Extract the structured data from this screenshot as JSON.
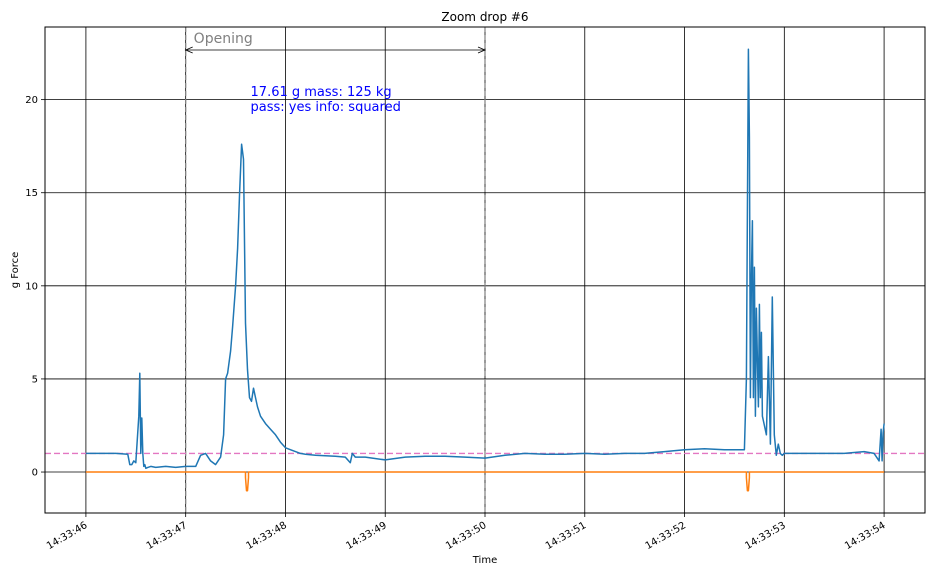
{
  "chart_data": {
    "type": "line",
    "title": "Zoom drop #6",
    "xlabel": "Time",
    "ylabel": "g Force",
    "grid": true,
    "x_ticks": [
      "14:33:46",
      "14:33:47",
      "14:33:48",
      "14:33:49",
      "14:33:50",
      "14:33:51",
      "14:33:52",
      "14:33:53",
      "14:33:54"
    ],
    "y_ticks": [
      "0",
      "5",
      "10",
      "15",
      "20"
    ],
    "xlim": [
      -0.41,
      8.41
    ],
    "ylim": [
      -2.2,
      23.9
    ],
    "reference_line": {
      "y": 1.0,
      "style": "dashed",
      "color": "#e377c2"
    },
    "phase": {
      "label": "Opening",
      "x_start": 1.0,
      "x_end": 4.0
    },
    "annotation": {
      "line1": "17.61 g  mass: 125 kg",
      "line2": "pass: yes  info: squared",
      "x": 1.65,
      "y": 20.2
    },
    "series": [
      {
        "color": "#1f77b4",
        "x": [
          0,
          0.15,
          0.3,
          0.42,
          0.44,
          0.46,
          0.48,
          0.5,
          0.53,
          0.54,
          0.55,
          0.56,
          0.57,
          0.58,
          0.59,
          0.6,
          0.62,
          0.65,
          0.7,
          0.8,
          0.9,
          1.0,
          1.1,
          1.15,
          1.2,
          1.25,
          1.3,
          1.35,
          1.38,
          1.4,
          1.42,
          1.45,
          1.47,
          1.5,
          1.52,
          1.54,
          1.56,
          1.58,
          1.6,
          1.62,
          1.64,
          1.66,
          1.68,
          1.7,
          1.72,
          1.75,
          1.8,
          1.85,
          1.9,
          1.95,
          2.0,
          2.05,
          2.1,
          2.15,
          2.2,
          2.3,
          2.5,
          2.6,
          2.65,
          2.67,
          2.7,
          2.8,
          3.0,
          3.2,
          3.4,
          3.6,
          3.8,
          4.0,
          4.2,
          4.4,
          4.6,
          4.8,
          5.0,
          5.2,
          5.4,
          5.6,
          5.8,
          6.0,
          6.2,
          6.4,
          6.5,
          6.55,
          6.6,
          6.62,
          6.63,
          6.64,
          6.65,
          6.66,
          6.67,
          6.68,
          6.69,
          6.7,
          6.71,
          6.72,
          6.73,
          6.74,
          6.75,
          6.76,
          6.77,
          6.78,
          6.8,
          6.82,
          6.84,
          6.86,
          6.88,
          6.9,
          6.92,
          6.94,
          6.96,
          6.98,
          7.0,
          7.05,
          7.1,
          7.2,
          7.4,
          7.6,
          7.8,
          7.9,
          7.95,
          7.97,
          7.98,
          7.99,
          8.0
        ],
        "y": [
          1.0,
          1.0,
          1.0,
          0.95,
          0.4,
          0.4,
          0.6,
          0.5,
          3.0,
          5.3,
          1.0,
          2.9,
          1.0,
          0.3,
          0.4,
          0.2,
          0.25,
          0.3,
          0.25,
          0.3,
          0.25,
          0.3,
          0.3,
          0.9,
          1.0,
          0.6,
          0.4,
          0.8,
          2.0,
          5.0,
          5.3,
          6.5,
          7.8,
          10.0,
          12.0,
          15.0,
          17.6,
          16.8,
          8.0,
          5.5,
          4.0,
          3.8,
          4.5,
          4.0,
          3.5,
          3.0,
          2.6,
          2.3,
          2.0,
          1.6,
          1.3,
          1.2,
          1.1,
          1.0,
          0.95,
          0.9,
          0.85,
          0.8,
          0.5,
          1.0,
          0.8,
          0.8,
          0.65,
          0.8,
          0.85,
          0.85,
          0.8,
          0.75,
          0.9,
          1.0,
          0.95,
          0.95,
          1.0,
          0.95,
          1.0,
          1.0,
          1.1,
          1.2,
          1.25,
          1.2,
          1.2,
          1.2,
          1.2,
          5.0,
          14.0,
          22.7,
          18.0,
          4.0,
          10.5,
          13.5,
          4.0,
          11.0,
          3.0,
          8.8,
          6.0,
          3.5,
          9.0,
          4.0,
          7.5,
          3.0,
          2.5,
          2.0,
          6.2,
          1.5,
          9.4,
          2.0,
          0.9,
          1.5,
          1.0,
          0.9,
          1.0,
          1.0,
          1.0,
          1.0,
          1.0,
          1.0,
          1.1,
          1.0,
          0.6,
          2.3,
          0.6,
          2.1,
          2.6
        ]
      },
      {
        "color": "#ff7f0e",
        "x": [
          0,
          1.6,
          1.6,
          1.61,
          1.62,
          1.63,
          1.63,
          6.62,
          6.62,
          6.63,
          6.64,
          6.65,
          6.65,
          8.0
        ],
        "y": [
          0,
          0,
          -0.3,
          -1.0,
          -1.0,
          -0.3,
          0,
          0,
          -0.3,
          -1.0,
          -1.0,
          -0.3,
          0,
          0
        ]
      }
    ]
  }
}
